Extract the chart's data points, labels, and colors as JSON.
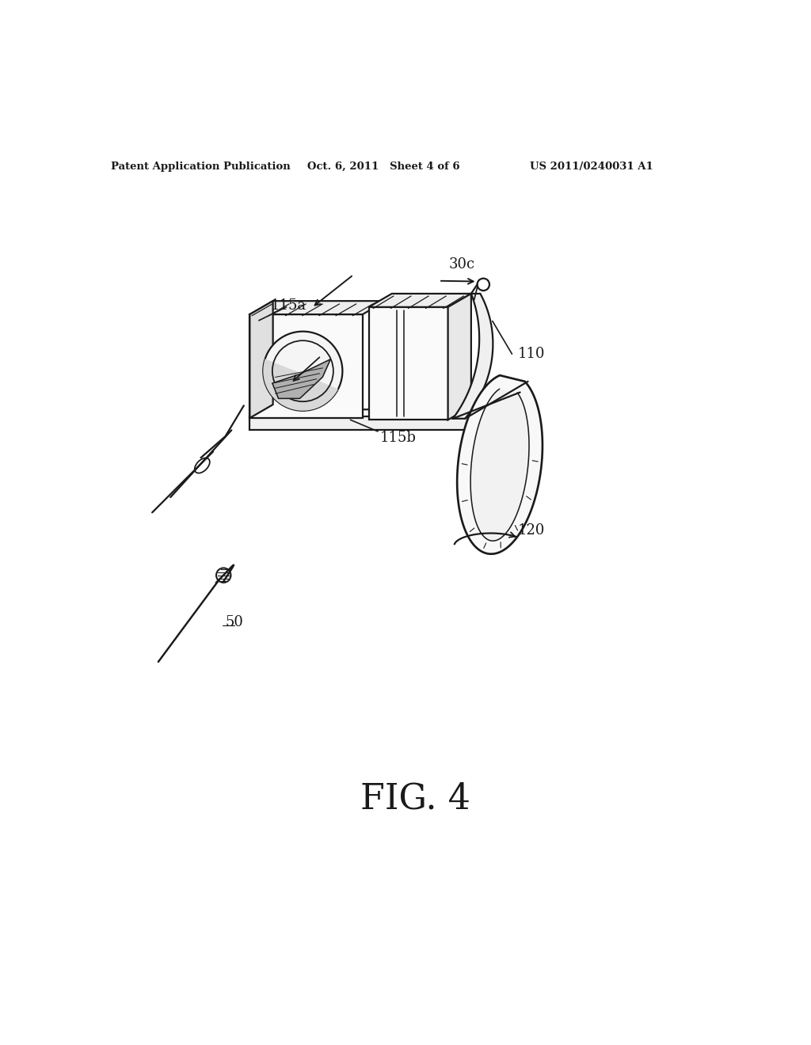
{
  "background_color": "#ffffff",
  "header_left": "Patent Application Publication",
  "header_middle": "Oct. 6, 2011   Sheet 4 of 6",
  "header_right": "US 2011/0240031 A1",
  "figure_label": "FIG. 4",
  "dark": "#1a1a1a",
  "lw": 1.6
}
